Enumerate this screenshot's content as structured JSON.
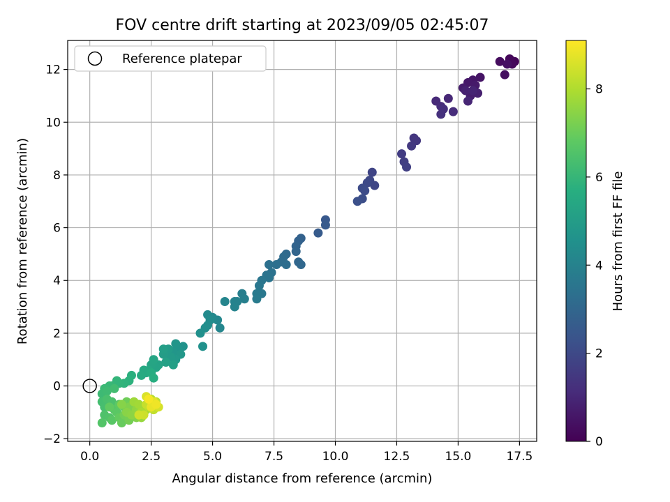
{
  "chart_data": {
    "type": "scatter",
    "title": "FOV centre drift starting at 2023/09/05 02:45:07",
    "xlabel": "Angular distance from reference (arcmin)",
    "ylabel": "Rotation from reference (arcmin)",
    "xlim": [
      -0.9,
      18.2
    ],
    "ylim": [
      -2.1,
      13.1
    ],
    "xticks": [
      "0.0",
      "2.5",
      "5.0",
      "7.5",
      "10.0",
      "12.5",
      "15.0",
      "17.5"
    ],
    "yticks": [
      "−2",
      "0",
      "2",
      "4",
      "6",
      "8",
      "10",
      "12"
    ],
    "grid": true,
    "legend": {
      "placement": "top-left",
      "entries": [
        "Reference platepar"
      ]
    },
    "reference_point": {
      "x": 0.0,
      "y": 0.0
    },
    "colorbar": {
      "label": "Hours from first FF file",
      "range": [
        0,
        9.1
      ],
      "ticks": [
        "0",
        "2",
        "4",
        "6",
        "8"
      ],
      "colormap": "viridis"
    },
    "points": [
      [
        17.3,
        12.3,
        0.1
      ],
      [
        17.1,
        12.4,
        0.15
      ],
      [
        17.2,
        12.2,
        0.2
      ],
      [
        16.7,
        12.3,
        0.3
      ],
      [
        16.9,
        11.8,
        0.35
      ],
      [
        17.0,
        12.2,
        0.4
      ],
      [
        15.9,
        11.7,
        0.5
      ],
      [
        15.6,
        11.6,
        0.55
      ],
      [
        15.4,
        11.5,
        0.6
      ],
      [
        15.7,
        11.4,
        0.65
      ],
      [
        15.2,
        11.3,
        0.7
      ],
      [
        15.5,
        11.0,
        0.75
      ],
      [
        15.8,
        11.1,
        0.8
      ],
      [
        15.3,
        11.2,
        0.85
      ],
      [
        15.6,
        11.2,
        0.9
      ],
      [
        15.4,
        10.8,
        0.95
      ],
      [
        14.6,
        10.9,
        1.0
      ],
      [
        14.1,
        10.8,
        1.05
      ],
      [
        14.3,
        10.6,
        1.1
      ],
      [
        14.8,
        10.4,
        1.15
      ],
      [
        14.4,
        10.5,
        1.2
      ],
      [
        14.3,
        10.3,
        1.25
      ],
      [
        13.2,
        9.4,
        1.4
      ],
      [
        13.3,
        9.3,
        1.45
      ],
      [
        13.1,
        9.1,
        1.5
      ],
      [
        12.7,
        8.8,
        1.6
      ],
      [
        12.8,
        8.5,
        1.65
      ],
      [
        12.9,
        8.3,
        1.7
      ],
      [
        11.5,
        8.1,
        1.85
      ],
      [
        11.6,
        7.6,
        1.9
      ],
      [
        11.4,
        7.8,
        1.95
      ],
      [
        11.3,
        7.7,
        2.0
      ],
      [
        11.1,
        7.5,
        2.05
      ],
      [
        11.2,
        7.4,
        2.1
      ],
      [
        11.1,
        7.1,
        2.15
      ],
      [
        10.9,
        7.0,
        2.2
      ],
      [
        9.6,
        6.3,
        2.5
      ],
      [
        9.6,
        6.1,
        2.55
      ],
      [
        9.3,
        5.8,
        2.6
      ],
      [
        8.6,
        5.6,
        2.8
      ],
      [
        8.5,
        5.5,
        2.85
      ],
      [
        8.4,
        5.3,
        2.9
      ],
      [
        8.4,
        5.1,
        2.95
      ],
      [
        8.5,
        4.7,
        3.0
      ],
      [
        8.6,
        4.6,
        3.05
      ],
      [
        8.0,
        5.0,
        3.1
      ],
      [
        7.9,
        4.9,
        3.15
      ],
      [
        7.8,
        4.7,
        3.2
      ],
      [
        8.0,
        4.6,
        3.25
      ],
      [
        7.6,
        4.6,
        3.3
      ],
      [
        7.3,
        4.6,
        3.35
      ],
      [
        7.4,
        4.3,
        3.4
      ],
      [
        7.2,
        4.2,
        3.45
      ],
      [
        7.3,
        4.1,
        3.5
      ],
      [
        7.0,
        4.0,
        3.55
      ],
      [
        6.9,
        3.8,
        3.6
      ],
      [
        7.0,
        3.5,
        3.65
      ],
      [
        6.8,
        3.5,
        3.7
      ],
      [
        6.8,
        3.3,
        3.75
      ],
      [
        6.2,
        3.5,
        3.85
      ],
      [
        6.3,
        3.3,
        3.9
      ],
      [
        6.0,
        3.2,
        3.95
      ],
      [
        5.9,
        3.2,
        4.0
      ],
      [
        5.9,
        3.0,
        4.05
      ],
      [
        5.5,
        3.2,
        4.1
      ],
      [
        5.3,
        2.2,
        4.15
      ],
      [
        5.2,
        2.5,
        4.2
      ],
      [
        5.0,
        2.6,
        4.25
      ],
      [
        4.8,
        2.7,
        4.3
      ],
      [
        4.9,
        2.5,
        4.35
      ],
      [
        4.8,
        2.3,
        4.4
      ],
      [
        4.7,
        2.2,
        4.45
      ],
      [
        4.5,
        2.0,
        4.5
      ],
      [
        4.6,
        1.5,
        4.55
      ],
      [
        3.8,
        1.5,
        4.6
      ],
      [
        3.6,
        1.4,
        4.65
      ],
      [
        3.5,
        1.6,
        4.7
      ],
      [
        3.4,
        1.3,
        4.75
      ],
      [
        3.7,
        1.2,
        4.8
      ],
      [
        3.5,
        1.0,
        4.85
      ],
      [
        3.3,
        1.1,
        4.9
      ],
      [
        3.2,
        1.4,
        4.95
      ],
      [
        3.0,
        1.2,
        5.0
      ],
      [
        3.0,
        1.4,
        5.05
      ],
      [
        3.4,
        0.8,
        5.1
      ],
      [
        3.1,
        0.9,
        5.15
      ],
      [
        2.8,
        0.8,
        5.2
      ],
      [
        2.7,
        0.7,
        5.25
      ],
      [
        2.5,
        0.8,
        5.3
      ],
      [
        2.6,
        1.0,
        5.35
      ],
      [
        2.4,
        0.6,
        5.4
      ],
      [
        2.3,
        0.5,
        5.45
      ],
      [
        2.2,
        0.6,
        5.5
      ],
      [
        2.1,
        0.4,
        5.55
      ],
      [
        2.5,
        0.5,
        5.6
      ],
      [
        2.6,
        0.3,
        5.65
      ],
      [
        1.7,
        0.4,
        5.75
      ],
      [
        1.6,
        0.2,
        5.8
      ],
      [
        1.4,
        0.1,
        5.85
      ],
      [
        1.2,
        0.1,
        5.9
      ],
      [
        1.1,
        0.2,
        5.95
      ],
      [
        0.9,
        0.0,
        6.0
      ],
      [
        0.8,
        0.0,
        6.05
      ],
      [
        0.6,
        -0.1,
        6.1
      ],
      [
        0.5,
        -0.3,
        6.15
      ],
      [
        0.7,
        -0.2,
        6.2
      ],
      [
        1.0,
        -0.1,
        6.25
      ],
      [
        0.5,
        -0.6,
        6.3
      ],
      [
        0.6,
        -0.8,
        6.35
      ],
      [
        0.7,
        -0.5,
        6.4
      ],
      [
        0.9,
        -0.6,
        6.45
      ],
      [
        0.6,
        -1.1,
        6.5
      ],
      [
        0.8,
        -1.2,
        6.55
      ],
      [
        0.5,
        -1.4,
        6.6
      ],
      [
        1.0,
        -0.9,
        6.65
      ],
      [
        0.9,
        -1.3,
        6.7
      ],
      [
        1.1,
        -1.0,
        6.75
      ],
      [
        1.2,
        -0.7,
        6.8
      ],
      [
        0.8,
        -0.8,
        6.85
      ],
      [
        1.2,
        -1.2,
        6.9
      ],
      [
        1.3,
        -1.4,
        6.95
      ],
      [
        1.4,
        -0.8,
        7.0
      ],
      [
        1.5,
        -0.6,
        7.05
      ],
      [
        1.4,
        -1.1,
        7.1
      ],
      [
        1.6,
        -1.3,
        7.15
      ],
      [
        1.7,
        -0.9,
        7.2
      ],
      [
        1.8,
        -0.7,
        7.25
      ],
      [
        1.6,
        -0.8,
        7.3
      ],
      [
        1.9,
        -1.2,
        7.35
      ],
      [
        1.3,
        -0.7,
        7.4
      ],
      [
        1.5,
        -1.0,
        7.45
      ],
      [
        1.7,
        -1.1,
        7.5
      ],
      [
        1.9,
        -0.9,
        7.55
      ],
      [
        2.0,
        -1.0,
        7.6
      ],
      [
        2.1,
        -1.2,
        7.65
      ],
      [
        2.2,
        -0.8,
        7.7
      ],
      [
        1.8,
        -0.6,
        7.75
      ],
      [
        2.0,
        -0.7,
        7.8
      ],
      [
        2.3,
        -0.9,
        7.85
      ],
      [
        2.1,
        -1.0,
        7.9
      ],
      [
        2.4,
        -0.6,
        8.0
      ],
      [
        2.5,
        -0.5,
        8.05
      ],
      [
        2.6,
        -0.7,
        8.1
      ],
      [
        2.4,
        -0.8,
        8.15
      ],
      [
        2.7,
        -0.6,
        8.2
      ],
      [
        2.6,
        -0.9,
        8.25
      ],
      [
        2.3,
        -0.7,
        8.3
      ],
      [
        2.5,
        -0.6,
        8.35
      ],
      [
        2.2,
        -1.1,
        8.4
      ],
      [
        2.0,
        -1.1,
        8.45
      ],
      [
        2.8,
        -0.8,
        8.5
      ],
      [
        2.3,
        -0.4,
        8.6
      ],
      [
        2.6,
        -0.6,
        8.7
      ],
      [
        2.5,
        -0.8,
        8.8
      ],
      [
        2.7,
        -0.7,
        8.9
      ],
      [
        2.4,
        -0.5,
        9.0
      ]
    ]
  }
}
